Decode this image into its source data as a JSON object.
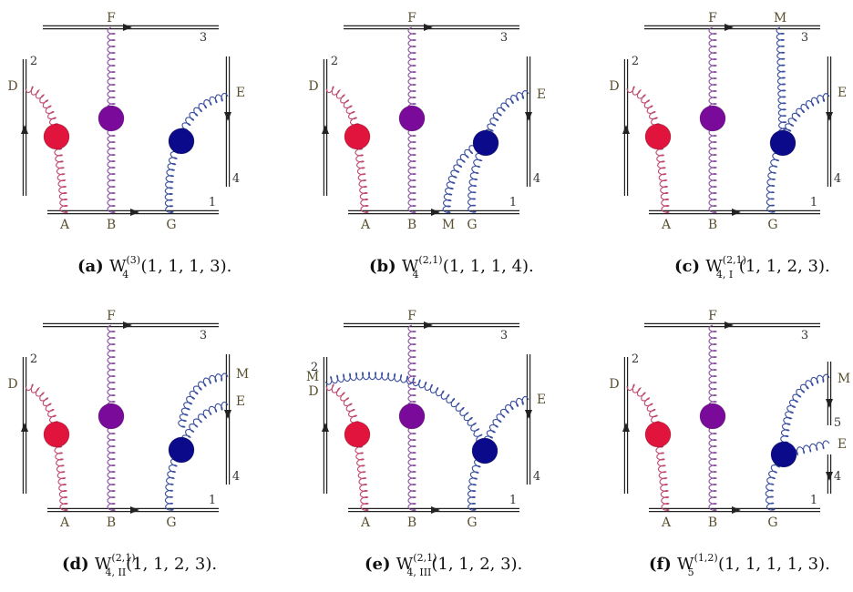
{
  "colors": {
    "wilson_line": "#222222",
    "gluon_red": "#c04a6e",
    "gluon_purple": "#8a4fa0",
    "gluon_blue": "#3a4fa0",
    "blob_red": "#e0143c",
    "blob_purple": "#7a0a9a",
    "blob_blue": "#0a0a8a",
    "label_text": "#5a5030"
  },
  "panels": [
    {
      "id": "a",
      "labels": {
        "F": "F",
        "A": "A",
        "B": "B",
        "G": "G",
        "D": "D",
        "E": "E"
      },
      "line_numbers": {
        "top": "3",
        "left": "2",
        "right": "4",
        "bottom": "1"
      },
      "caption": {
        "letter": "(a)",
        "w": "W",
        "sup": "(3)",
        "sub": "4",
        "args": "(1, 1, 1, 3)."
      }
    },
    {
      "id": "b",
      "labels": {
        "F": "F",
        "A": "A",
        "B": "B",
        "M": "M",
        "G": "G",
        "D": "D",
        "E": "E"
      },
      "line_numbers": {
        "top": "3",
        "left": "2",
        "right": "4",
        "bottom": "1"
      },
      "caption": {
        "letter": "(b)",
        "w": "W",
        "sup": "(2,1)",
        "sub": "4",
        "args": "(1, 1, 1, 4)."
      }
    },
    {
      "id": "c",
      "labels": {
        "F": "F",
        "M": "M",
        "A": "A",
        "B": "B",
        "G": "G",
        "D": "D",
        "E": "E"
      },
      "line_numbers": {
        "top": "3",
        "left": "2",
        "right": "4",
        "bottom": "1"
      },
      "caption": {
        "letter": "(c)",
        "w": "W",
        "sup": "(2,1)",
        "sub": "4, I",
        "args": "(1, 1, 2, 3)."
      }
    },
    {
      "id": "d",
      "labels": {
        "F": "F",
        "A": "A",
        "B": "B",
        "G": "G",
        "D": "D",
        "E": "E",
        "M": "M"
      },
      "line_numbers": {
        "top": "3",
        "left": "2",
        "right": "4",
        "bottom": "1"
      },
      "caption": {
        "letter": "(d)",
        "w": "W",
        "sup": "(2,1)",
        "sub": "4, II",
        "args": "(1, 1, 2, 3)."
      }
    },
    {
      "id": "e",
      "labels": {
        "F": "F",
        "A": "A",
        "B": "B",
        "G": "G",
        "D": "D",
        "E": "E",
        "M": "M"
      },
      "line_numbers": {
        "top": "3",
        "left": "2",
        "right": "4",
        "bottom": "1"
      },
      "caption": {
        "letter": "(e)",
        "w": "W",
        "sup": "(2,1)",
        "sub": "4, III",
        "args": "(1, 1, 2, 3)."
      }
    },
    {
      "id": "f",
      "labels": {
        "F": "F",
        "A": "A",
        "B": "B",
        "G": "G",
        "D": "D",
        "E": "E",
        "M": "M"
      },
      "line_numbers": {
        "top": "3",
        "left": "2",
        "right": "4",
        "bottom": "1",
        "extra": "5"
      },
      "caption": {
        "letter": "(f)",
        "w": "W",
        "sup": "(1,2)",
        "sub": "5",
        "args": "(1, 1, 1, 1, 3)."
      }
    }
  ]
}
